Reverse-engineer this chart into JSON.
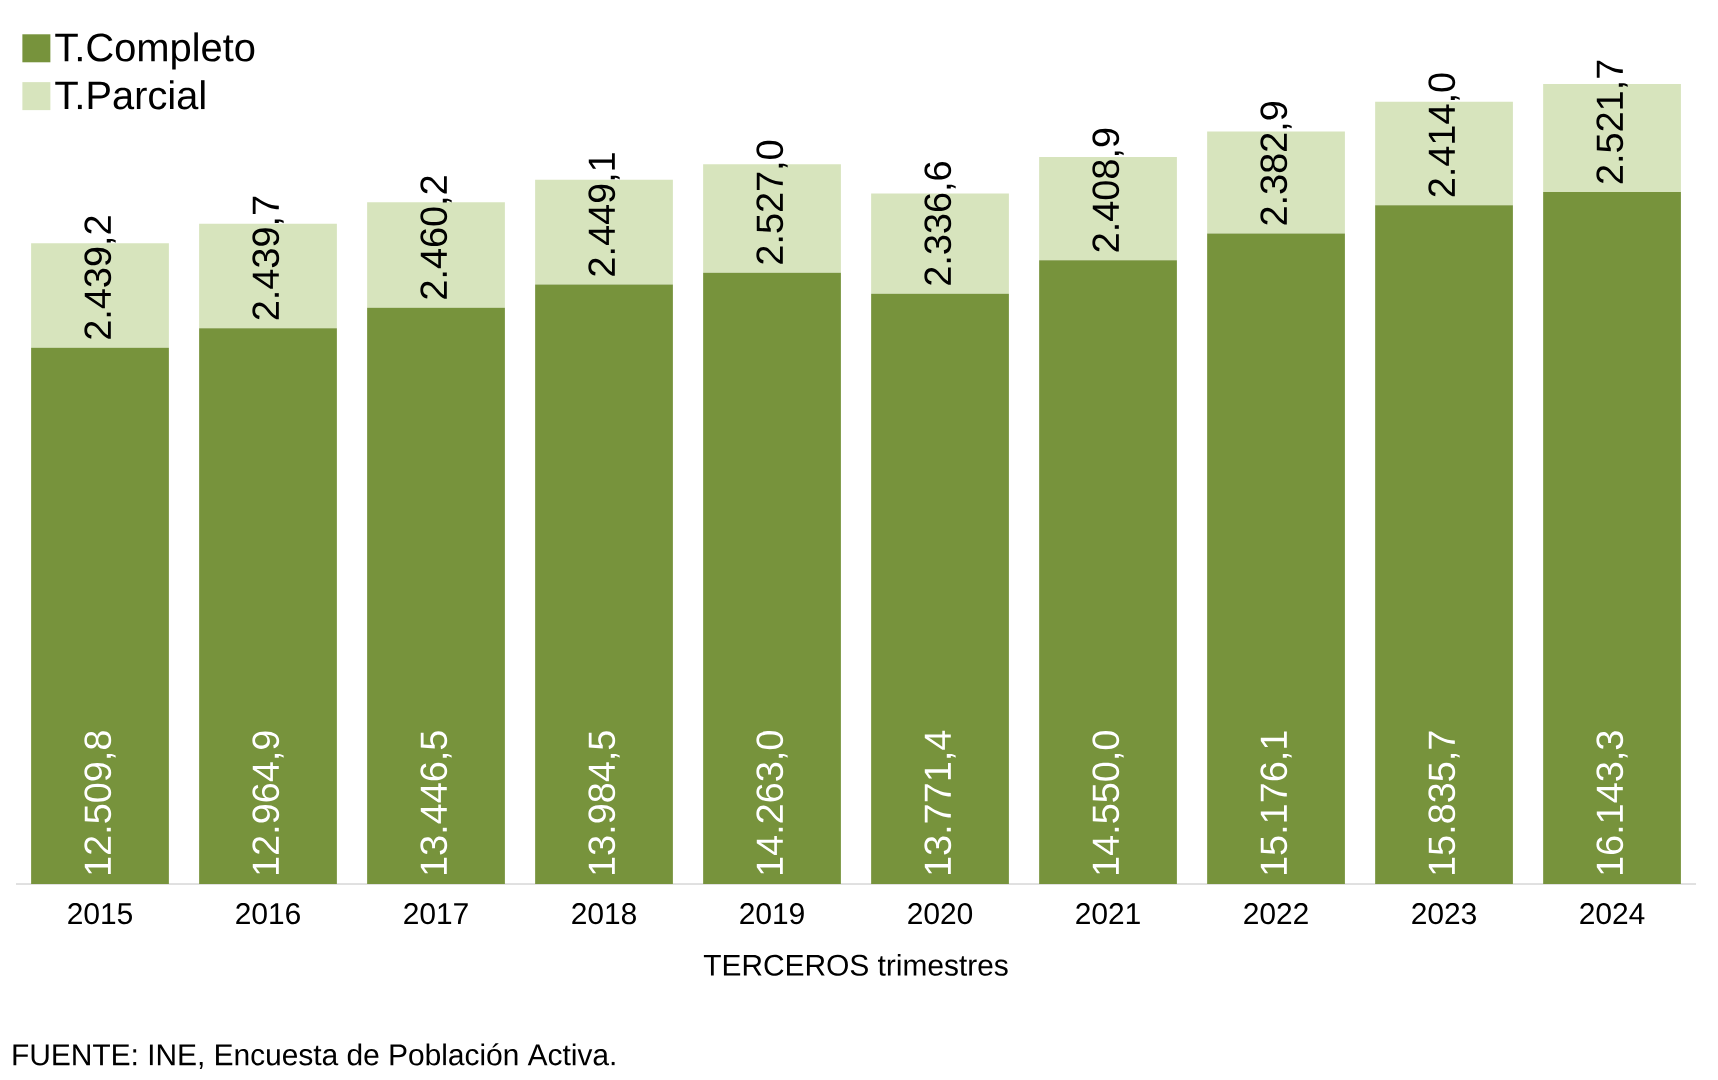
{
  "chart_data": {
    "type": "bar",
    "stacked": true,
    "xlabel": "TERCEROS trimestres",
    "annotations": [
      "FUENTE: INE, Encuesta de Población Activa."
    ],
    "categories": [
      "2015",
      "2016",
      "2017",
      "2018",
      "2019",
      "2020",
      "2021",
      "2022",
      "2023",
      "2024"
    ],
    "series": [
      {
        "name": "T.Completo",
        "color": "#77933c",
        "values": [
          12509.8,
          12964.9,
          13446.5,
          13984.5,
          14263.0,
          13771.4,
          14550.0,
          15176.1,
          15835.7,
          16143.3
        ],
        "value_labels": [
          "12.509,8",
          "12.964,9",
          "13.446,5",
          "13.984,5",
          "14.263,0",
          "13.771,4",
          "14.550,0",
          "15.176,1",
          "15.835,7",
          "16.143,3"
        ]
      },
      {
        "name": "T.Parcial",
        "color": "#d7e4bd",
        "values": [
          2439.2,
          2439.7,
          2460.2,
          2449.1,
          2527.0,
          2336.6,
          2408.9,
          2382.9,
          2414.0,
          2521.7
        ],
        "value_labels": [
          "2.439,2",
          "2.439,7",
          "2.460,2",
          "2.449,1",
          "2.527,0",
          "2.336,6",
          "2.408,9",
          "2.382,9",
          "2.414,0",
          "2.521,7"
        ]
      }
    ],
    "legend": "top left"
  }
}
